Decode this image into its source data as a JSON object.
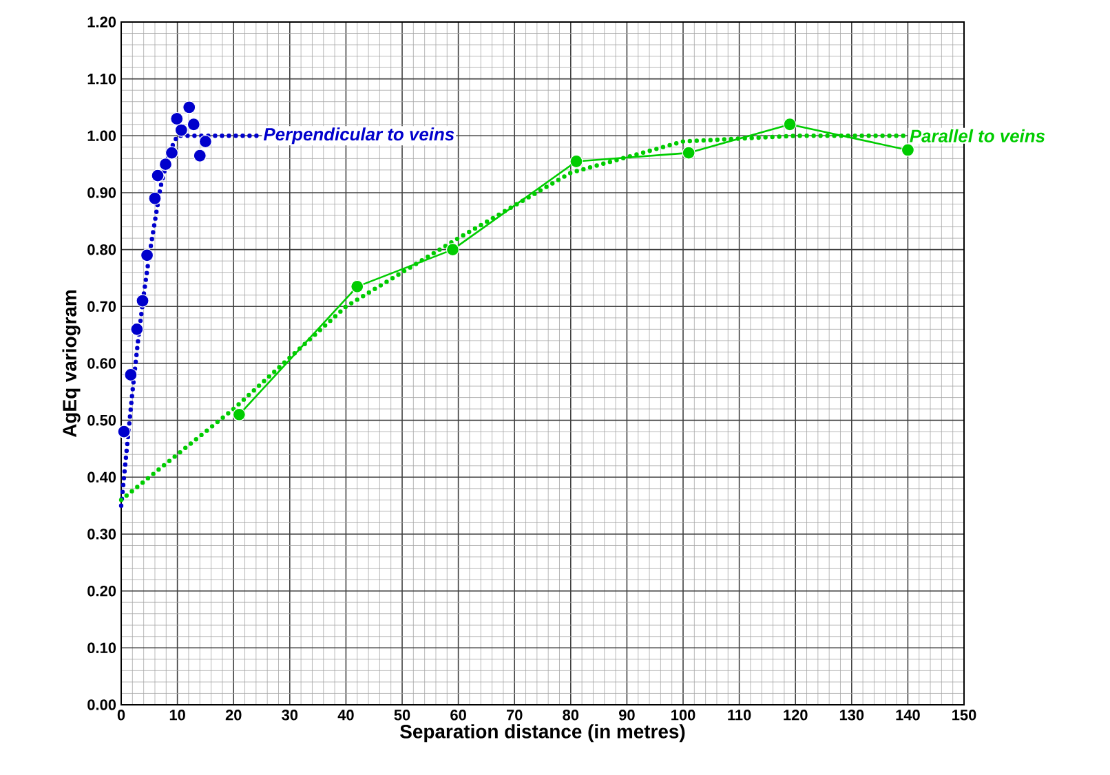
{
  "chart_data": {
    "type": "line",
    "xlabel": "Separation distance (in metres)",
    "ylabel": "AgEq variogram",
    "xlim": [
      0,
      150
    ],
    "ylim": [
      0,
      1.2
    ],
    "xticks": [
      0,
      10,
      20,
      30,
      40,
      50,
      60,
      70,
      80,
      90,
      100,
      110,
      120,
      130,
      140,
      150
    ],
    "yticks": [
      {
        "value": 0,
        "label": "0.00"
      },
      {
        "value": 0.1,
        "label": "0.10"
      },
      {
        "value": 0.2,
        "label": "0.20"
      },
      {
        "value": 0.3,
        "label": "0.30"
      },
      {
        "value": 0.4,
        "label": "0.40"
      },
      {
        "value": 0.5,
        "label": "0.50"
      },
      {
        "value": 0.6,
        "label": "0.60"
      },
      {
        "value": 0.7,
        "label": "0.70"
      },
      {
        "value": 0.8,
        "label": "0.80"
      },
      {
        "value": 0.9,
        "label": "0.90"
      },
      {
        "value": 1.0,
        "label": "1.00"
      },
      {
        "value": 1.1,
        "label": "1.10"
      },
      {
        "value": 1.2,
        "label": "1.20"
      }
    ],
    "grid": true,
    "series": [
      {
        "name": "Perpendicular to veins",
        "color": "#0000cc",
        "line_style": "dotted",
        "marker": "none",
        "x": [
          0,
          1,
          2,
          3,
          4,
          5,
          6,
          7,
          8,
          9,
          10,
          25
        ],
        "values": [
          0.35,
          0.45,
          0.55,
          0.64,
          0.72,
          0.79,
          0.85,
          0.91,
          0.95,
          0.98,
          1.0,
          1.0
        ]
      },
      {
        "type": "scatter",
        "color": "#0000cc",
        "marker": "circle",
        "x": [
          0.5,
          1.7,
          2.8,
          3.8,
          4.6,
          6.0,
          6.5,
          7.9,
          9.0,
          10.7,
          9.9,
          12.1,
          12.9,
          15.0,
          14.0
        ],
        "values": [
          0.48,
          0.58,
          0.66,
          0.71,
          0.79,
          0.89,
          0.93,
          0.95,
          0.97,
          1.01,
          1.03,
          1.05,
          1.02,
          0.99,
          0.965
        ]
      },
      {
        "name": "Parallel to veins",
        "color": "#00cc00",
        "line_style": "dotted",
        "marker": "none",
        "x": [
          0,
          20,
          40,
          60,
          80,
          100,
          120,
          140
        ],
        "values": [
          0.36,
          0.52,
          0.7,
          0.82,
          0.935,
          0.99,
          1.0,
          1.0
        ]
      },
      {
        "color": "#00cc00",
        "line_style": "solid",
        "marker": "circle",
        "x": [
          21,
          42,
          59,
          81,
          101,
          119,
          140
        ],
        "values": [
          0.51,
          0.735,
          0.8,
          0.955,
          0.97,
          1.02,
          0.975
        ]
      }
    ]
  }
}
